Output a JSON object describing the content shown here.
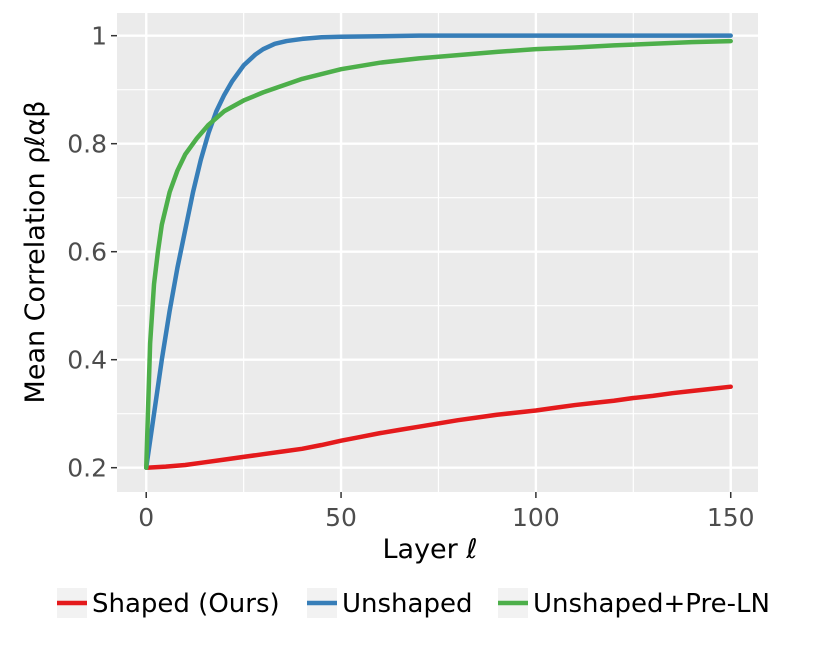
{
  "chart_data": {
    "type": "line",
    "xlabel": "Layer ℓ",
    "ylabel": "Mean Correlation ρℓαβ",
    "xlim": [
      -7.5,
      157
    ],
    "ylim": [
      0.155,
      1.042
    ],
    "x_ticks": [
      0,
      50,
      100,
      150
    ],
    "x_tick_labels": [
      "0",
      "50",
      "100",
      "150"
    ],
    "y_ticks": [
      0.2,
      0.4,
      0.6,
      0.8,
      1.0
    ],
    "y_tick_labels": [
      "0.2",
      "0.4",
      "0.6",
      "0.8",
      "1"
    ],
    "grid": true,
    "panel_background": "#ebebeb",
    "legend_position": "bottom",
    "series": [
      {
        "name": "Shaped (Ours)",
        "color": "#e41a1c",
        "x": [
          0,
          5,
          10,
          15,
          20,
          25,
          30,
          35,
          40,
          45,
          50,
          55,
          60,
          65,
          70,
          75,
          80,
          85,
          90,
          95,
          100,
          105,
          110,
          115,
          120,
          125,
          130,
          135,
          140,
          145,
          150
        ],
        "y": [
          0.2,
          0.202,
          0.205,
          0.21,
          0.215,
          0.22,
          0.225,
          0.23,
          0.235,
          0.242,
          0.25,
          0.257,
          0.264,
          0.27,
          0.276,
          0.282,
          0.288,
          0.293,
          0.298,
          0.302,
          0.306,
          0.311,
          0.316,
          0.32,
          0.324,
          0.329,
          0.333,
          0.338,
          0.342,
          0.346,
          0.35
        ]
      },
      {
        "name": "Unshaped",
        "color": "#377eb8",
        "x": [
          0,
          2,
          4,
          6,
          8,
          10,
          12,
          14,
          16,
          18,
          20,
          22,
          25,
          28,
          30,
          33,
          36,
          40,
          45,
          50,
          60,
          70,
          80,
          100,
          120,
          150
        ],
        "y": [
          0.2,
          0.3,
          0.4,
          0.49,
          0.57,
          0.64,
          0.71,
          0.77,
          0.82,
          0.86,
          0.89,
          0.915,
          0.945,
          0.965,
          0.975,
          0.985,
          0.99,
          0.994,
          0.997,
          0.998,
          0.999,
          1.0,
          1.0,
          1.0,
          1.0,
          1.0
        ]
      },
      {
        "name": "Unshaped+Pre-LN",
        "color": "#4daf4a",
        "x": [
          0,
          1,
          2,
          3,
          4,
          6,
          8,
          10,
          13,
          16,
          20,
          25,
          30,
          40,
          50,
          60,
          70,
          80,
          90,
          100,
          110,
          120,
          130,
          140,
          150
        ],
        "y": [
          0.2,
          0.43,
          0.54,
          0.6,
          0.65,
          0.71,
          0.75,
          0.78,
          0.81,
          0.835,
          0.86,
          0.88,
          0.895,
          0.92,
          0.938,
          0.95,
          0.958,
          0.964,
          0.97,
          0.975,
          0.978,
          0.982,
          0.985,
          0.988,
          0.99
        ]
      }
    ]
  }
}
